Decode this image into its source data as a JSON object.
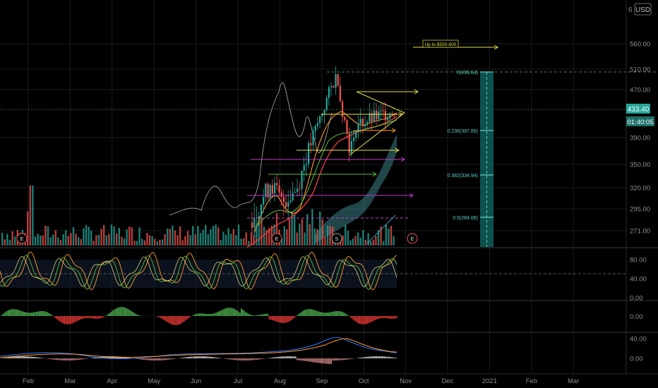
{
  "colors": {
    "background": "#000000",
    "grid": "#1b1b1b",
    "axis_text": "#8f8f8f",
    "up": "#26a69a",
    "down": "#ef5350",
    "current_price_bg": "#26a69a",
    "fib": "#5ad1c9",
    "fib_box": "#0e5f5c",
    "cloud": "#3a7f86",
    "pane_divider": "#3a3a3a",
    "yellow": "#e6e24a",
    "magenta": "#c03ec8",
    "green_line": "#5bbd3d",
    "orange": "#ff9b2f",
    "red_ma": "#e23b3b",
    "blue": "#2e7bff",
    "white_line": "#e9e9e9"
  },
  "header": {
    "currency": "USD",
    "top_tick": "6"
  },
  "price_axis": {
    "ticks": [
      {
        "value": 560,
        "label": "560.00"
      },
      {
        "value": 510,
        "label": "510.00"
      },
      {
        "value": 470,
        "label": "470.00"
      },
      {
        "value": 390,
        "label": "390.00"
      },
      {
        "value": 350,
        "label": "350.00"
      },
      {
        "value": 320,
        "label": "320.00"
      },
      {
        "value": 295,
        "label": "295.00"
      },
      {
        "value": 271,
        "label": "271.00"
      }
    ],
    "current_price": "433.40",
    "countdown": "01:40:05"
  },
  "annotations": {
    "target_label": "Up to $550-600",
    "events": [
      "E",
      "E",
      "S",
      "E",
      "E",
      "E"
    ]
  },
  "fib_levels": [
    {
      "label": "0(499.64)",
      "value": 499.64
    },
    {
      "label": "0.236(397.89)",
      "value": 397.89
    },
    {
      "label": "0.382(334.94)",
      "value": 334.94
    },
    {
      "label": "0.5(284.06)",
      "value": 284.06
    }
  ],
  "indicators": {
    "stoch_ticks": [
      "80.00",
      "40.00",
      "0.00"
    ],
    "momentum_ticks": [
      "0.00"
    ],
    "macd_ticks": [
      "40.00",
      "0.00"
    ]
  },
  "time_axis": [
    "Feb",
    "Mar",
    "Apr",
    "May",
    "Jun",
    "Jul",
    "Aug",
    "Sep",
    "Oct",
    "Nov",
    "Dec",
    "2021",
    "Feb",
    "Mar"
  ],
  "chart_data": {
    "type": "candlestick",
    "title": "",
    "xlabel": "",
    "ylabel": "",
    "x_range": [
      "Jan",
      "Mar 2021"
    ],
    "ylim": [
      255,
      590
    ],
    "last_price": 433.4,
    "recent_closes": [
      {
        "x": "Jul",
        "y": 280
      },
      {
        "x": "Jul",
        "y": 330
      },
      {
        "x": "Aug",
        "y": 300
      },
      {
        "x": "Aug",
        "y": 340
      },
      {
        "x": "Aug",
        "y": 400
      },
      {
        "x": "Sep",
        "y": 499.64
      },
      {
        "x": "Sep",
        "y": 430
      },
      {
        "x": "Sep",
        "y": 350
      },
      {
        "x": "Sep",
        "y": 430
      },
      {
        "x": "Oct",
        "y": 415
      },
      {
        "x": "Oct",
        "y": 440
      },
      {
        "x": "Oct",
        "y": 433.4
      }
    ],
    "fibonacci": [
      {
        "ratio": 0,
        "price": 499.64
      },
      {
        "ratio": 0.236,
        "price": 397.89
      },
      {
        "ratio": 0.382,
        "price": 334.94
      },
      {
        "ratio": 0.5,
        "price": 284.06
      }
    ],
    "target_range": [
      550,
      600
    ]
  }
}
